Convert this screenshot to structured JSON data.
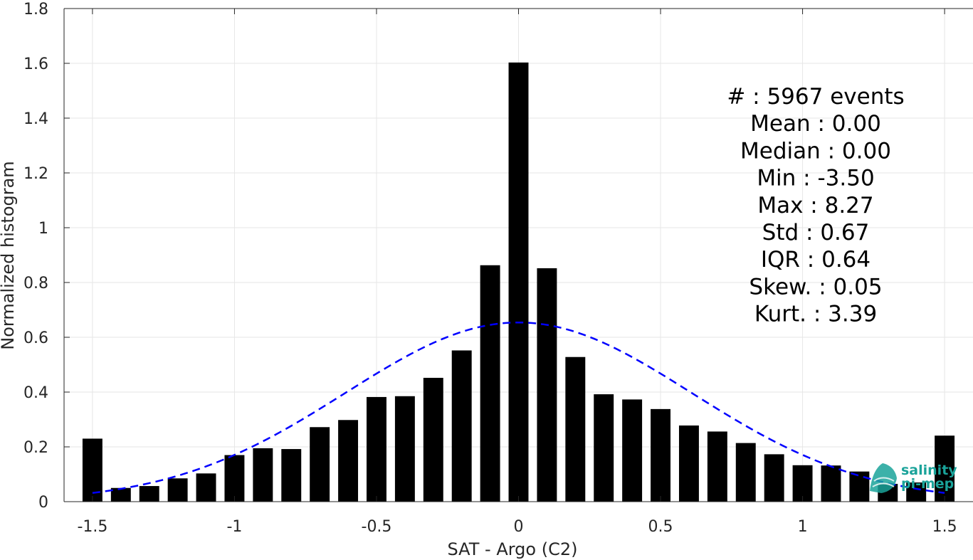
{
  "chart_data": {
    "type": "bar",
    "xlabel": "SAT - Argo (C2)",
    "ylabel": "Normalized histogram",
    "xlim": [
      -1.6,
      1.6
    ],
    "ylim": [
      0,
      1.8
    ],
    "xticks": [
      -1.5,
      -1,
      -0.5,
      0,
      0.5,
      1,
      1.5
    ],
    "xtick_labels": [
      "-1.5",
      "-1",
      "-0.5",
      "0",
      "0.5",
      "1",
      "1.5"
    ],
    "yticks": [
      0,
      0.2,
      0.4,
      0.6,
      0.8,
      1,
      1.2,
      1.4,
      1.6,
      1.8
    ],
    "ytick_labels": [
      "0",
      "0.2",
      "0.4",
      "0.6",
      "0.8",
      "1",
      "1.2",
      "1.4",
      "1.6",
      "1.8"
    ],
    "grid": true,
    "bar_width": 0.07,
    "bar_color": "#000000",
    "x": [
      -1.5,
      -1.4,
      -1.3,
      -1.2,
      -1.1,
      -1.0,
      -0.9,
      -0.8,
      -0.7,
      -0.6,
      -0.5,
      -0.4,
      -0.3,
      -0.2,
      -0.1,
      0.0,
      0.1,
      0.2,
      0.3,
      0.4,
      0.5,
      0.6,
      0.7,
      0.8,
      0.9,
      1.0,
      1.1,
      1.2,
      1.3,
      1.4,
      1.5
    ],
    "values": [
      0.23,
      0.05,
      0.057,
      0.085,
      0.103,
      0.17,
      0.195,
      0.192,
      0.272,
      0.298,
      0.382,
      0.385,
      0.452,
      0.552,
      0.863,
      1.603,
      0.852,
      0.528,
      0.392,
      0.373,
      0.338,
      0.278,
      0.256,
      0.214,
      0.173,
      0.133,
      0.132,
      0.11,
      0.065,
      0.07,
      0.241
    ],
    "fit_curve": {
      "style": "dashed",
      "color": "#0000ff",
      "mean": 0.0,
      "std": 0.61,
      "amplitude": 0.654
    },
    "stats": [
      "#  : 5967 events",
      "Mean : 0.00",
      "Median : 0.00",
      "Min : -3.50",
      "Max : 8.27",
      "Std : 0.67",
      "IQR : 0.64",
      "Skew. : 0.05",
      "Kurt. : 3.39"
    ]
  },
  "logo": {
    "line1": "salinity",
    "line2": "pi-mep"
  }
}
